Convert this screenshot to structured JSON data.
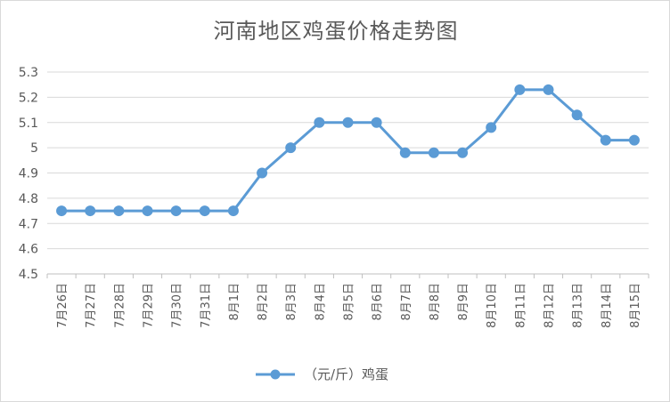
{
  "chart_data": {
    "type": "line",
    "title": "河南地区鸡蛋价格走势图",
    "categories": [
      "7月26日",
      "7月27日",
      "7月28日",
      "7月29日",
      "7月30日",
      "7月31日",
      "8月1日",
      "8月2日",
      "8月3日",
      "8月4日",
      "8月5日",
      "8月6日",
      "8月7日",
      "8月8日",
      "8月9日",
      "8月10日",
      "8月11日",
      "8月12日",
      "8月13日",
      "8月14日",
      "8月15日"
    ],
    "series": [
      {
        "name": "（元/斤）鸡蛋",
        "values": [
          4.75,
          4.75,
          4.75,
          4.75,
          4.75,
          4.75,
          4.75,
          4.9,
          5.0,
          5.1,
          5.1,
          5.1,
          4.98,
          4.98,
          4.98,
          5.08,
          5.23,
          5.23,
          5.13,
          5.03,
          5.03
        ]
      }
    ],
    "y_ticks": [
      "4.5",
      "4.6",
      "4.7",
      "4.8",
      "4.9",
      "5",
      "5.1",
      "5.2",
      "5.3"
    ],
    "ylim": [
      4.5,
      5.3
    ],
    "grid": "horizontal",
    "legend": "bottom-center",
    "colors": {
      "series": "#5b9bd5",
      "grid": "#d9d9d9",
      "text": "#595959"
    }
  }
}
